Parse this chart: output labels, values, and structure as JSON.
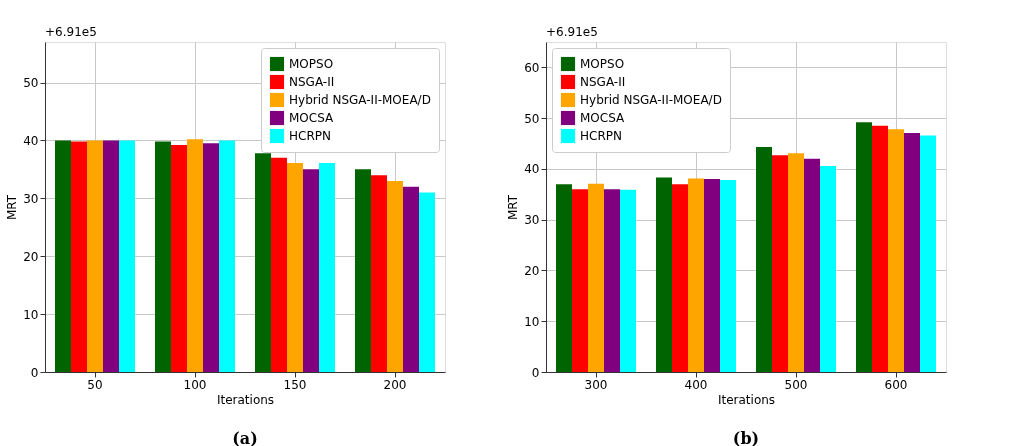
{
  "chart_data": [
    {
      "type": "bar",
      "categories": [
        "50",
        "100",
        "150",
        "200"
      ],
      "xlabel": "Iterations",
      "ylabel": "MRT",
      "ylim": [
        0,
        57
      ],
      "yticks": [
        0,
        10,
        20,
        30,
        40,
        50
      ],
      "grid": true,
      "legend": "top right",
      "annotations": [
        "+6.91e5",
        "(a)"
      ],
      "series": [
        {
          "name": "MOPSO",
          "color": "#006400",
          "values": [
            40,
            39.8,
            37.8,
            35
          ]
        },
        {
          "name": "NSGA-II",
          "color": "#ff0000",
          "values": [
            39.8,
            39.2,
            37,
            34
          ]
        },
        {
          "name": "Hybrid NSGA-II-MOEA/D",
          "color": "#ffa500",
          "values": [
            40,
            40.2,
            36.1,
            33
          ]
        },
        {
          "name": "MOCSA",
          "color": "#800080",
          "values": [
            40,
            39.5,
            35,
            32
          ]
        },
        {
          "name": "HCRPN",
          "color": "#00ffff",
          "values": [
            40,
            40,
            36.1,
            31
          ]
        }
      ]
    },
    {
      "type": "bar",
      "categories": [
        "300",
        "400",
        "500",
        "600"
      ],
      "xlabel": "Iterations",
      "ylabel": "MRT",
      "ylim": [
        0,
        65
      ],
      "yticks": [
        0,
        10,
        20,
        30,
        40,
        50,
        60
      ],
      "grid": true,
      "legend": "top left",
      "annotations": [
        "+6.91e5",
        "(b)"
      ],
      "series": [
        {
          "name": "MOPSO",
          "color": "#006400",
          "values": [
            37,
            38.3,
            44.3,
            49.2
          ]
        },
        {
          "name": "NSGA-II",
          "color": "#ff0000",
          "values": [
            36,
            37,
            42.7,
            48.5
          ]
        },
        {
          "name": "Hybrid NSGA-II-MOEA/D",
          "color": "#ffa500",
          "values": [
            37.1,
            38.1,
            43.1,
            47.8
          ]
        },
        {
          "name": "MOCSA",
          "color": "#800080",
          "values": [
            36,
            38,
            42,
            47.1
          ]
        },
        {
          "name": "HCRPN",
          "color": "#00ffff",
          "values": [
            35.9,
            37.8,
            40.6,
            46.6
          ]
        }
      ]
    }
  ]
}
